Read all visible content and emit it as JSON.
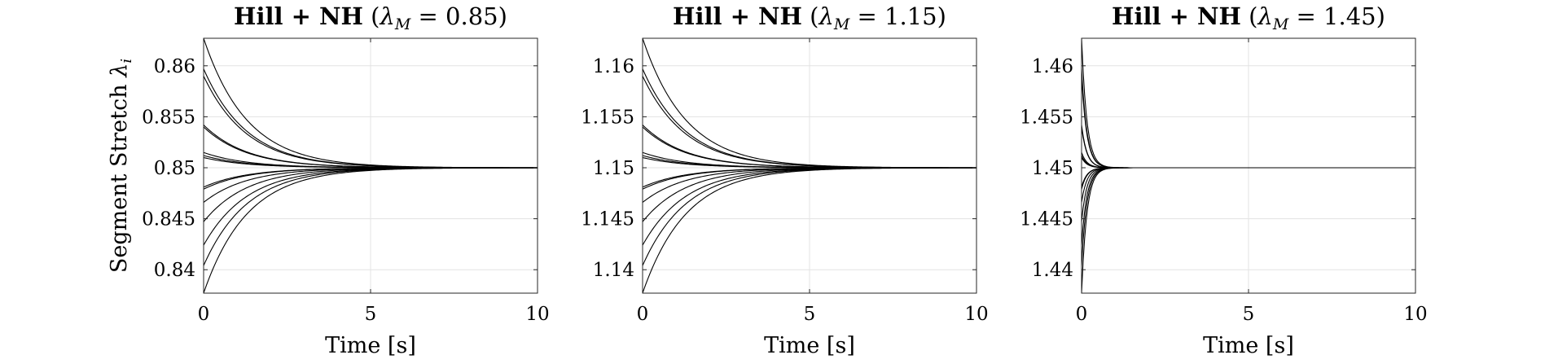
{
  "colors": {
    "background": "#ffffff",
    "line": "#000000",
    "grid": "#e3e3e3",
    "axes": "#262626"
  },
  "ylabel_shared": {
    "text": "Segment Stretch ",
    "symbol": "λ",
    "subscript": "i"
  },
  "chart_data": [
    {
      "type": "line",
      "title": {
        "bold": "Hill + NH",
        "param_symbol": "λ",
        "param_subscript": "M",
        "param_value": " = 0.85"
      },
      "xlabel": "Time [s]",
      "xlim": [
        0,
        10
      ],
      "ylim": [
        0.8377,
        0.8627
      ],
      "xticks": [
        0,
        5,
        10
      ],
      "xtick_labels": [
        "0",
        "5",
        "10"
      ],
      "yticks": [
        0.84,
        0.845,
        0.85,
        0.855,
        0.86
      ],
      "ytick_labels": [
        "0.84",
        "0.845",
        "0.85",
        "0.855",
        "0.86"
      ],
      "grid": true,
      "equilibrium": 0.85,
      "time_constant": 1.3,
      "series": [
        {
          "y0": 0.8627
        },
        {
          "y0": 0.8597
        },
        {
          "y0": 0.859
        },
        {
          "y0": 0.8542
        },
        {
          "y0": 0.854
        },
        {
          "y0": 0.8515
        },
        {
          "y0": 0.8512
        },
        {
          "y0": 0.851
        },
        {
          "y0": 0.8481
        },
        {
          "y0": 0.8479
        },
        {
          "y0": 0.8466
        },
        {
          "y0": 0.8447
        },
        {
          "y0": 0.8424
        },
        {
          "y0": 0.8404
        },
        {
          "y0": 0.8377
        }
      ]
    },
    {
      "type": "line",
      "title": {
        "bold": "Hill + NH",
        "param_symbol": "λ",
        "param_subscript": "M",
        "param_value": " = 1.15"
      },
      "xlabel": "Time [s]",
      "xlim": [
        0,
        10
      ],
      "ylim": [
        1.1377,
        1.1627
      ],
      "xticks": [
        0,
        5,
        10
      ],
      "xtick_labels": [
        "0",
        "5",
        "10"
      ],
      "yticks": [
        1.14,
        1.145,
        1.15,
        1.155,
        1.16
      ],
      "ytick_labels": [
        "1.14",
        "1.145",
        "1.15",
        "1.155",
        "1.16"
      ],
      "grid": true,
      "equilibrium": 1.15,
      "time_constant": 1.3,
      "series": [
        {
          "y0": 1.1627
        },
        {
          "y0": 1.1597
        },
        {
          "y0": 1.159
        },
        {
          "y0": 1.1542
        },
        {
          "y0": 1.154
        },
        {
          "y0": 1.1515
        },
        {
          "y0": 1.1512
        },
        {
          "y0": 1.151
        },
        {
          "y0": 1.1481
        },
        {
          "y0": 1.1479
        },
        {
          "y0": 1.1466
        },
        {
          "y0": 1.1447
        },
        {
          "y0": 1.1424
        },
        {
          "y0": 1.1404
        },
        {
          "y0": 1.1377
        }
      ]
    },
    {
      "type": "line",
      "title": {
        "bold": "Hill + NH",
        "param_symbol": "λ",
        "param_subscript": "M",
        "param_value": " = 1.45"
      },
      "xlabel": "Time [s]",
      "xlim": [
        0,
        10
      ],
      "ylim": [
        1.4377,
        1.4627
      ],
      "xticks": [
        0,
        5,
        10
      ],
      "xtick_labels": [
        "0",
        "5",
        "10"
      ],
      "yticks": [
        1.44,
        1.445,
        1.45,
        1.455,
        1.46
      ],
      "ytick_labels": [
        "1.44",
        "1.445",
        "1.45",
        "1.455",
        "1.46"
      ],
      "grid": true,
      "equilibrium": 1.45,
      "time_constant": 0.16,
      "series": [
        {
          "y0": 1.4627
        },
        {
          "y0": 1.4597
        },
        {
          "y0": 1.459
        },
        {
          "y0": 1.4542
        },
        {
          "y0": 1.454
        },
        {
          "y0": 1.4515
        },
        {
          "y0": 1.4512
        },
        {
          "y0": 1.451
        },
        {
          "y0": 1.4481
        },
        {
          "y0": 1.4479
        },
        {
          "y0": 1.4466
        },
        {
          "y0": 1.4447
        },
        {
          "y0": 1.4424
        },
        {
          "y0": 1.4404
        },
        {
          "y0": 1.4377
        }
      ]
    }
  ]
}
